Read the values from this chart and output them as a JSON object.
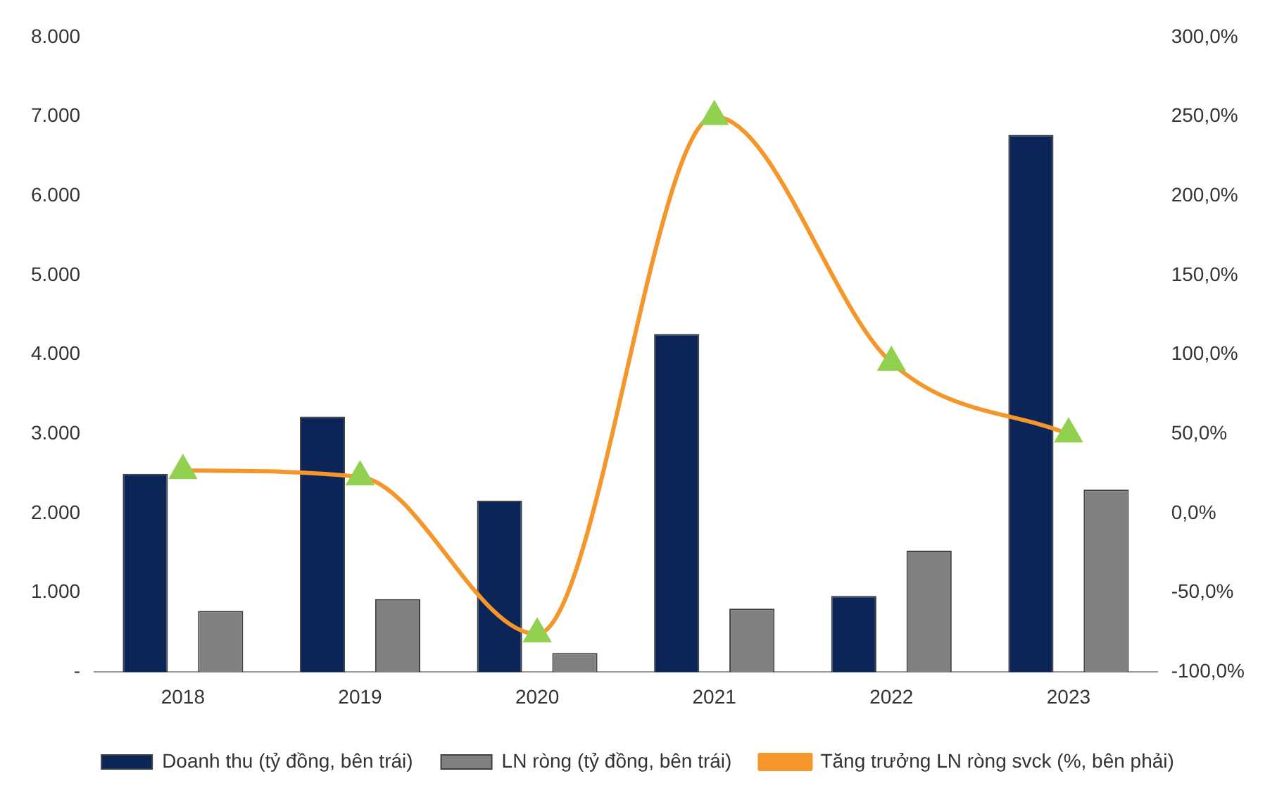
{
  "chart_data": {
    "type": "bar",
    "categories": [
      "2018",
      "2019",
      "2020",
      "2021",
      "2022",
      "2023"
    ],
    "series": [
      {
        "name": "Doanh thu (tỷ đồng, bên trái)",
        "color": "#0b2559",
        "values": [
          2500,
          3220,
          2160,
          4260,
          960,
          6770
        ]
      },
      {
        "name": "LN ròng (tỷ đồng, bên trái)",
        "color": "#808080",
        "values": [
          770,
          920,
          240,
          800,
          1530,
          2300
        ]
      },
      {
        "name": "Tăng trưởng LN ròng svck (%, bên phải)",
        "type": "line",
        "axis": "y2",
        "color": "#f5962a",
        "marker": "triangle",
        "values": [
          27,
          23,
          -76,
          250,
          95,
          50
        ]
      }
    ],
    "ylim": [
      0,
      8000
    ],
    "yticks": [
      {
        "value": 0,
        "label": "-"
      },
      {
        "value": 1000,
        "label": "1.000"
      },
      {
        "value": 2000,
        "label": "2.000"
      },
      {
        "value": 3000,
        "label": "3.000"
      },
      {
        "value": 4000,
        "label": "4.000"
      },
      {
        "value": 5000,
        "label": "5.000"
      },
      {
        "value": 6000,
        "label": "6.000"
      },
      {
        "value": 7000,
        "label": "7.000"
      },
      {
        "value": 8000,
        "label": "8.000"
      }
    ],
    "y2lim": [
      -100,
      300
    ],
    "y2ticks": [
      {
        "value": -100,
        "label": "-100,0%"
      },
      {
        "value": -50,
        "label": "-50,0%"
      },
      {
        "value": 0,
        "label": "0,0%"
      },
      {
        "value": 50,
        "label": "50,0%"
      },
      {
        "value": 100,
        "label": "100,0%"
      },
      {
        "value": 150,
        "label": "150,0%"
      },
      {
        "value": 200,
        "label": "200,0%"
      },
      {
        "value": 250,
        "label": "250,0%"
      },
      {
        "value": 300,
        "label": "300,0%"
      }
    ],
    "grid": false,
    "legend": "bottom"
  }
}
